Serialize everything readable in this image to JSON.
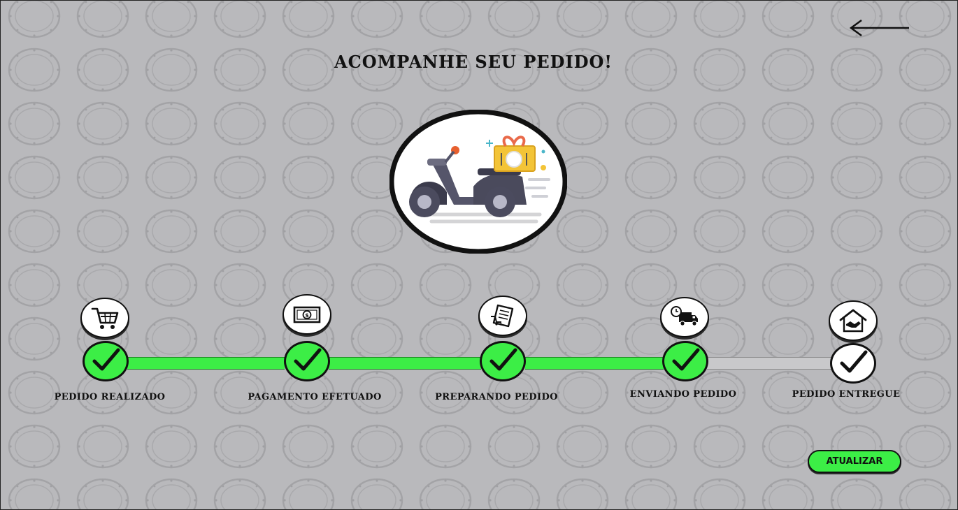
{
  "page": {
    "title": "ACOMPANHE SEU PEDIDO!",
    "back_icon": "arrow-left-icon",
    "hero_icon": "delivery-scooter-icon"
  },
  "colors": {
    "background": "#b9b9bc",
    "accent_green": "#3cee46",
    "pending_track": "#c9c9cb",
    "text": "#111111"
  },
  "progress": {
    "completed_steps": 4,
    "total_steps": 5
  },
  "steps": [
    {
      "label": "PEDIDO REALIZADO",
      "icon": "shopping-cart-icon",
      "status": "done"
    },
    {
      "label": "PAGAMENTO EFETUADO",
      "icon": "banknote-icon",
      "status": "done"
    },
    {
      "label": "PREPARANDO PEDIDO",
      "icon": "receipt-icon",
      "status": "done"
    },
    {
      "label": "ENVIANDO PEDIDO",
      "icon": "delivery-truck-icon",
      "status": "done"
    },
    {
      "label": "PEDIDO ENTREGUE",
      "icon": "house-handshake-icon",
      "status": "pending"
    }
  ],
  "actions": {
    "refresh_label": "ATUALIZAR"
  }
}
